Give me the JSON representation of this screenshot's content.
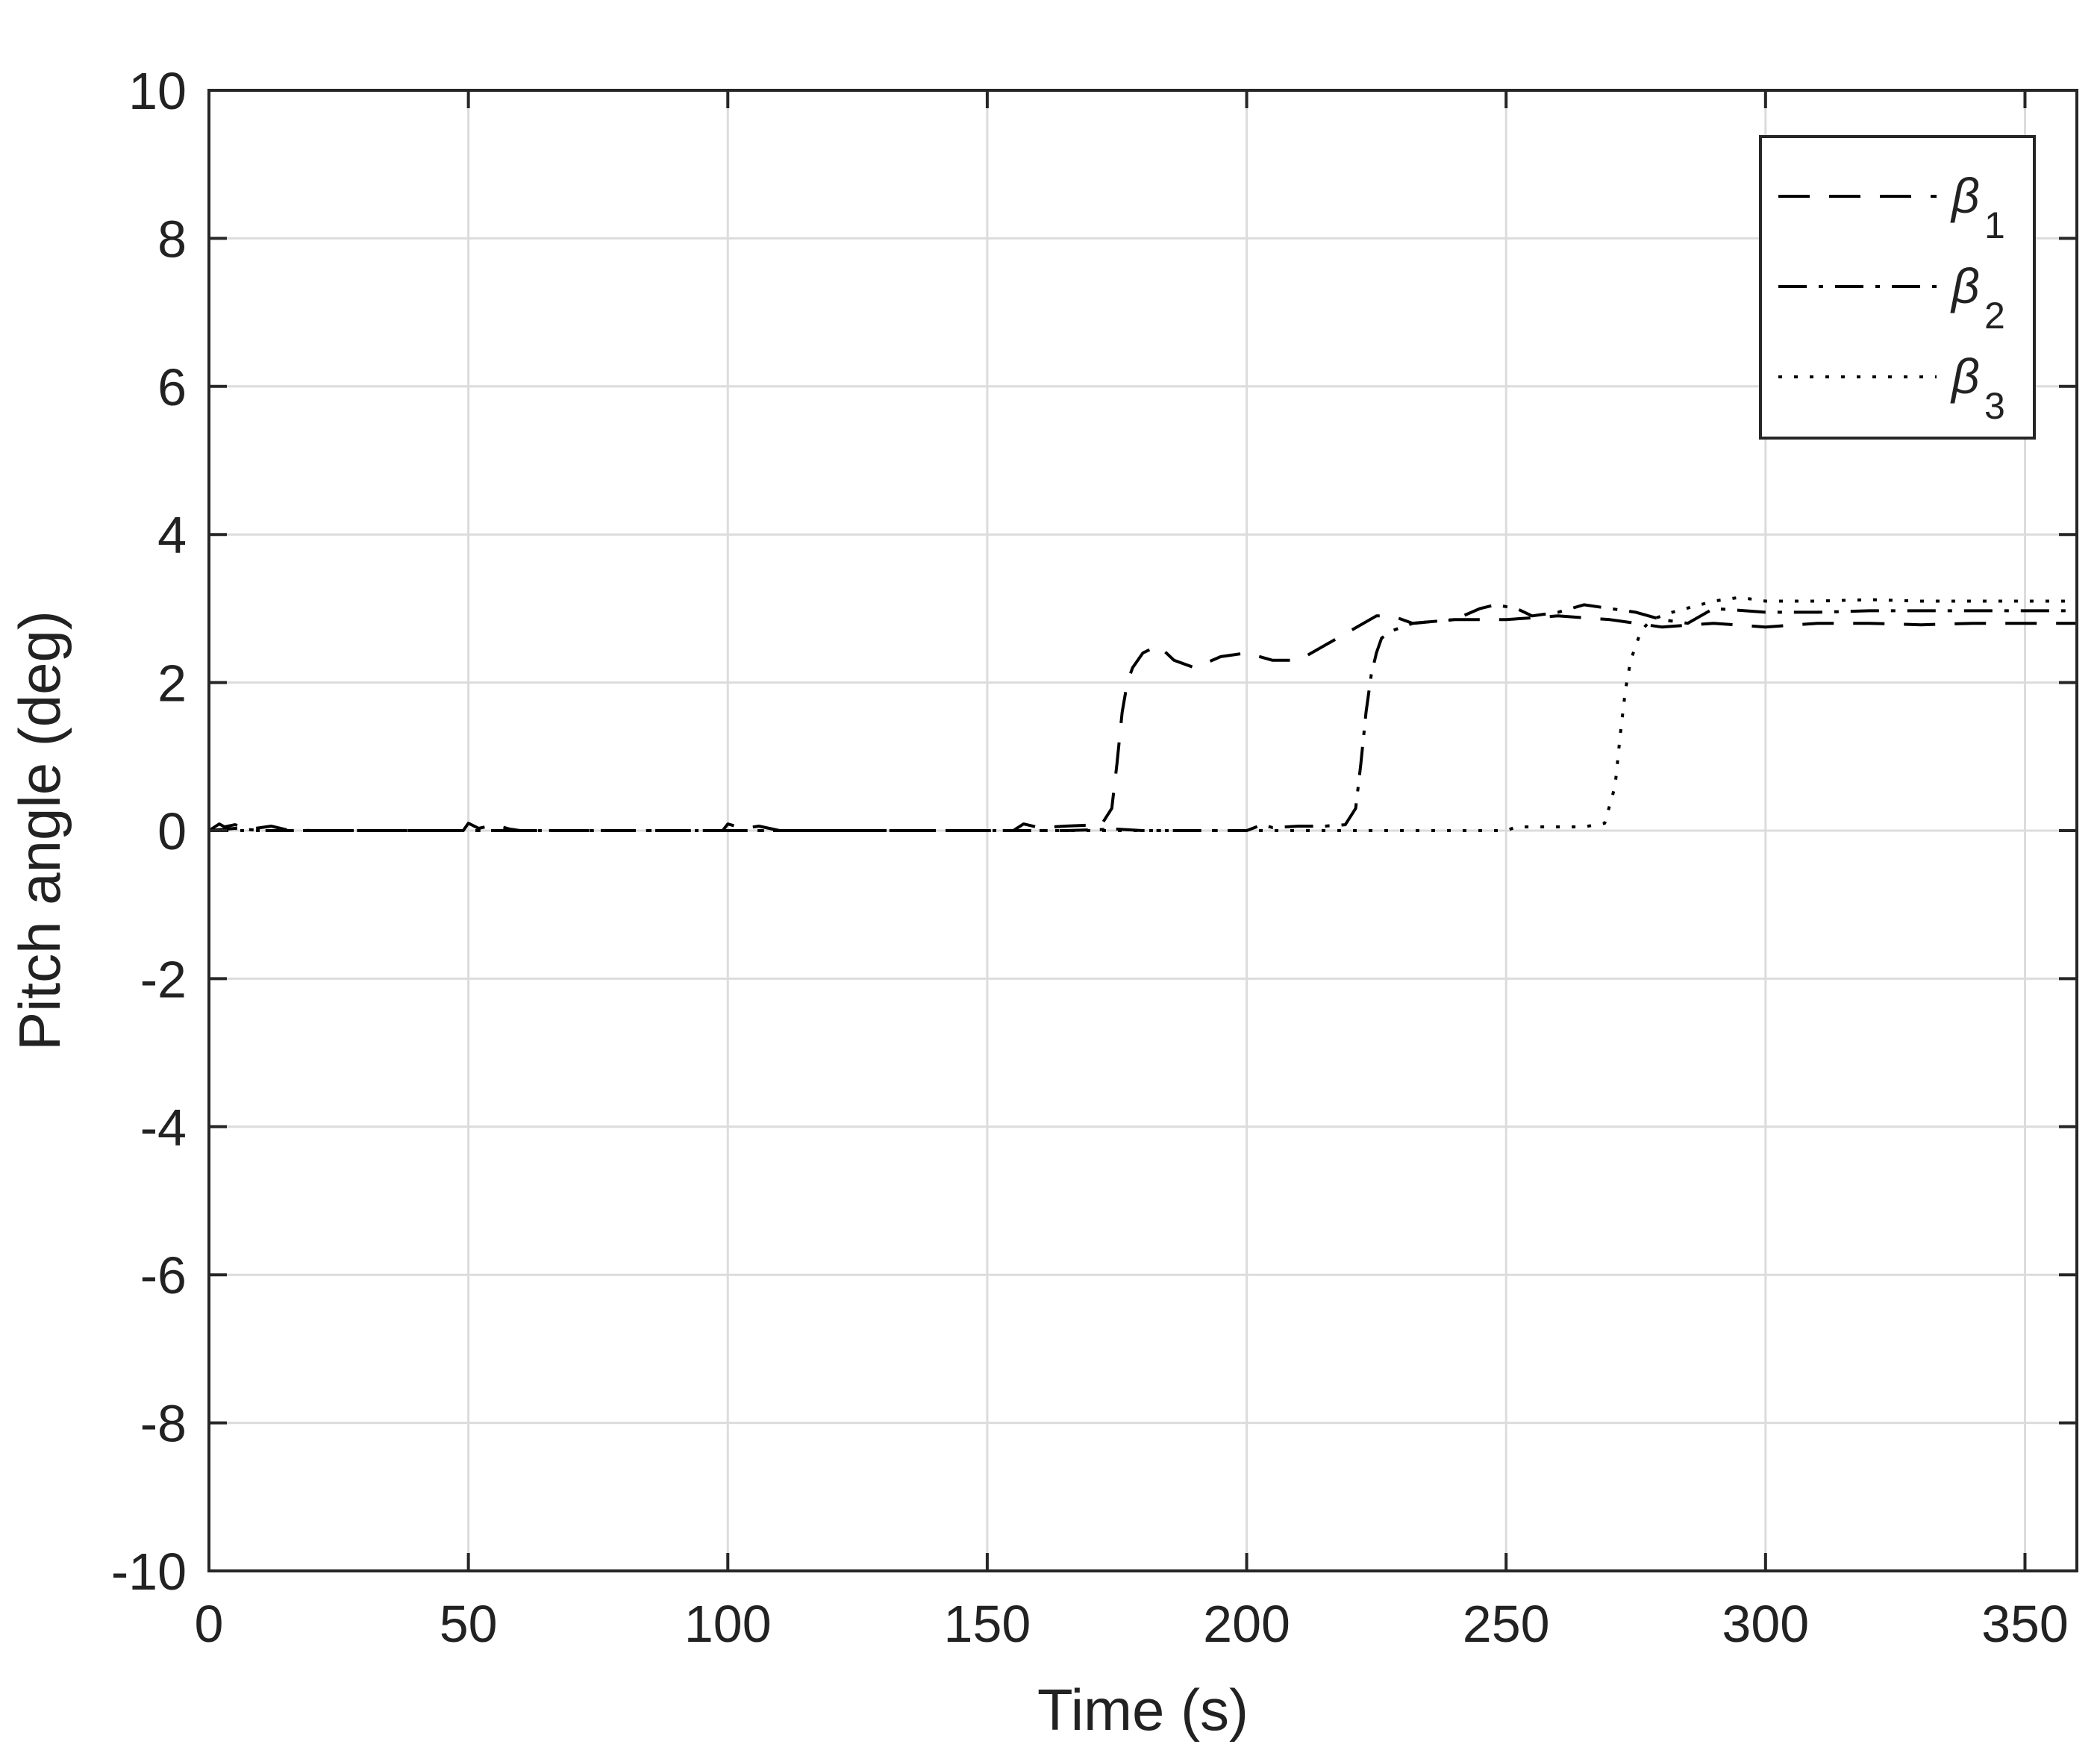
{
  "chart_data": {
    "type": "line",
    "title": "",
    "xlabel": "Time (s)",
    "ylabel": "Pitch angle (deg)",
    "xlim": [
      0,
      360
    ],
    "ylim": [
      -10,
      10
    ],
    "xticks": [
      0,
      50,
      100,
      150,
      200,
      250,
      300,
      350
    ],
    "yticks": [
      -10,
      -8,
      -6,
      -4,
      -2,
      0,
      2,
      4,
      6,
      8,
      10
    ],
    "grid": true,
    "legend_position": "top-right",
    "series": [
      {
        "name": "β1",
        "legend_base": "β",
        "legend_sub": "1",
        "line_style": "dashed",
        "color": "#000000",
        "x": [
          0,
          2,
          3,
          5,
          8,
          12,
          15,
          20,
          49,
          50,
          52,
          55,
          58,
          60,
          99,
          100,
          103,
          106,
          110,
          155,
          157,
          160,
          165,
          172,
          174,
          175,
          176,
          177,
          178,
          180,
          183,
          186,
          190,
          195,
          200,
          205,
          210,
          215,
          220,
          225,
          228,
          232,
          240,
          250,
          260,
          270,
          280,
          290,
          300,
          310,
          320,
          330,
          340,
          350,
          360
        ],
        "y": [
          0.0,
          0.09,
          0.05,
          0.08,
          0.02,
          0.06,
          0.01,
          0.0,
          0.0,
          0.1,
          0.03,
          0.08,
          0.02,
          0.0,
          0.0,
          0.09,
          0.03,
          0.06,
          0.0,
          0.0,
          0.09,
          0.04,
          0.06,
          0.08,
          0.3,
          0.9,
          1.6,
          2.0,
          2.2,
          2.4,
          2.5,
          2.3,
          2.2,
          2.35,
          2.4,
          2.3,
          2.3,
          2.5,
          2.7,
          2.9,
          2.9,
          2.8,
          2.85,
          2.85,
          2.9,
          2.85,
          2.75,
          2.8,
          2.75,
          2.8,
          2.8,
          2.78,
          2.8,
          2.8,
          2.8
        ]
      },
      {
        "name": "β2",
        "legend_base": "β",
        "legend_sub": "2",
        "line_style": "dashdot",
        "color": "#000000",
        "x": [
          0,
          5,
          10,
          50,
          100,
          150,
          165,
          175,
          180,
          190,
          200,
          203,
          205,
          210,
          215,
          219,
          221,
          222,
          223,
          224,
          225,
          226,
          228,
          232,
          240,
          245,
          248,
          252,
          255,
          260,
          265,
          270,
          275,
          280,
          285,
          290,
          300,
          310,
          320,
          330,
          340,
          350,
          360
        ],
        "y": [
          0.0,
          0.03,
          0.0,
          0.0,
          0.0,
          0.0,
          0.0,
          0.02,
          0.0,
          0.0,
          0.0,
          0.08,
          0.04,
          0.06,
          0.06,
          0.08,
          0.3,
          0.9,
          1.6,
          2.1,
          2.4,
          2.6,
          2.7,
          2.8,
          2.85,
          3.0,
          3.05,
          3.0,
          2.9,
          2.95,
          3.05,
          3.0,
          2.95,
          2.85,
          2.8,
          3.0,
          2.95,
          2.95,
          2.97,
          2.97,
          2.97,
          2.97,
          2.97
        ]
      },
      {
        "name": "β3",
        "legend_base": "β",
        "legend_sub": "3",
        "line_style": "dotted",
        "color": "#000000",
        "x": [
          0,
          50,
          100,
          150,
          200,
          220,
          250,
          252,
          255,
          265,
          269,
          271,
          272,
          273,
          274,
          275,
          276,
          278,
          282,
          290,
          295,
          300,
          310,
          320,
          330,
          340,
          350,
          360
        ],
        "y": [
          0.0,
          0.0,
          0.0,
          0.0,
          0.0,
          0.0,
          0.0,
          0.05,
          0.05,
          0.05,
          0.1,
          0.6,
          1.3,
          1.9,
          2.3,
          2.5,
          2.7,
          2.85,
          2.95,
          3.1,
          3.15,
          3.1,
          3.1,
          3.12,
          3.1,
          3.1,
          3.1,
          3.1
        ]
      }
    ]
  }
}
